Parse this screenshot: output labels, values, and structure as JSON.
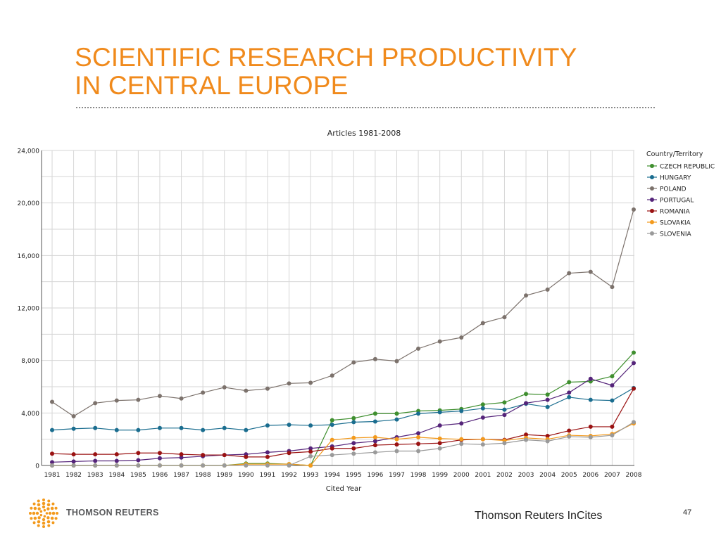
{
  "slide": {
    "title_line1": "SCIENTIFIC RESEARCH PRODUCTIVITY",
    "title_line2": "IN CENTRAL EUROPE",
    "logo_text": "THOMSON REUTERS",
    "footer_source": "Thomson Reuters InCites",
    "page_number": "47"
  },
  "colors": {
    "title": "#f08a1c",
    "series": [
      "#3f8f2f",
      "#1a6d8f",
      "#7c726c",
      "#55247a",
      "#9a1212",
      "#f39a1c",
      "#9a9a9a"
    ]
  },
  "chart_data": {
    "type": "line",
    "title": "Articles 1981-2008",
    "xlabel": "Cited Year",
    "ylabel": "",
    "ylim": [
      0,
      24000
    ],
    "yticks": [
      0,
      4000,
      8000,
      12000,
      16000,
      20000,
      24000
    ],
    "ytick_labels": [
      "0",
      "4,000",
      "8,000",
      "12,000",
      "16,000",
      "20,000",
      "24,000"
    ],
    "grid": true,
    "legend_title": "Country/Territory",
    "legend_position": "right",
    "categories": [
      "1981",
      "1982",
      "1983",
      "1984",
      "1985",
      "1986",
      "1987",
      "1988",
      "1989",
      "1990",
      "1991",
      "1992",
      "1993",
      "1994",
      "1995",
      "1996",
      "1997",
      "1998",
      "1999",
      "2000",
      "2001",
      "2002",
      "2003",
      "2004",
      "2005",
      "2006",
      "2007",
      "2008"
    ],
    "series": [
      {
        "name": "CZECH REPUBLIC",
        "values": [
          0,
          0,
          0,
          0,
          0,
          0,
          0,
          0,
          0,
          150,
          150,
          100,
          0,
          3450,
          3600,
          3950,
          3950,
          4150,
          4200,
          4300,
          4650,
          4800,
          5450,
          5400,
          6350,
          6400,
          6800,
          8600
        ]
      },
      {
        "name": "HUNGARY",
        "values": [
          2700,
          2800,
          2850,
          2700,
          2700,
          2850,
          2850,
          2700,
          2850,
          2700,
          3050,
          3100,
          3050,
          3100,
          3300,
          3350,
          3500,
          3950,
          4050,
          4150,
          4350,
          4250,
          4700,
          4450,
          5200,
          5000,
          4950,
          5900
        ]
      },
      {
        "name": "POLAND",
        "values": [
          4850,
          3750,
          4750,
          4950,
          5000,
          5300,
          5100,
          5550,
          5950,
          5700,
          5850,
          6250,
          6300,
          6850,
          7850,
          8100,
          7950,
          8900,
          9450,
          9750,
          10850,
          11300,
          12950,
          13400,
          14650,
          14750,
          13600,
          19500
        ]
      },
      {
        "name": "PORTUGAL",
        "values": [
          250,
          300,
          350,
          350,
          400,
          550,
          600,
          700,
          800,
          850,
          1000,
          1100,
          1300,
          1450,
          1700,
          1850,
          2150,
          2450,
          3050,
          3200,
          3650,
          3850,
          4750,
          5000,
          5550,
          6600,
          6100,
          7800
        ]
      },
      {
        "name": "ROMANIA",
        "values": [
          900,
          850,
          850,
          850,
          950,
          950,
          850,
          800,
          800,
          650,
          650,
          950,
          1050,
          1300,
          1300,
          1550,
          1600,
          1650,
          1700,
          1950,
          2000,
          1950,
          2350,
          2250,
          2650,
          2950,
          2950,
          5850
        ]
      },
      {
        "name": "SLOVAKIA",
        "values": [
          0,
          0,
          0,
          0,
          0,
          0,
          0,
          0,
          0,
          100,
          100,
          100,
          0,
          1950,
          2100,
          2150,
          2000,
          2150,
          2050,
          2000,
          2000,
          1900,
          2100,
          2000,
          2300,
          2250,
          2400,
          3200
        ]
      },
      {
        "name": "SLOVENIA",
        "values": [
          0,
          0,
          0,
          0,
          0,
          0,
          0,
          0,
          0,
          0,
          0,
          0,
          700,
          800,
          900,
          1000,
          1100,
          1100,
          1300,
          1650,
          1600,
          1700,
          1950,
          1850,
          2200,
          2150,
          2300,
          3300
        ]
      }
    ]
  }
}
